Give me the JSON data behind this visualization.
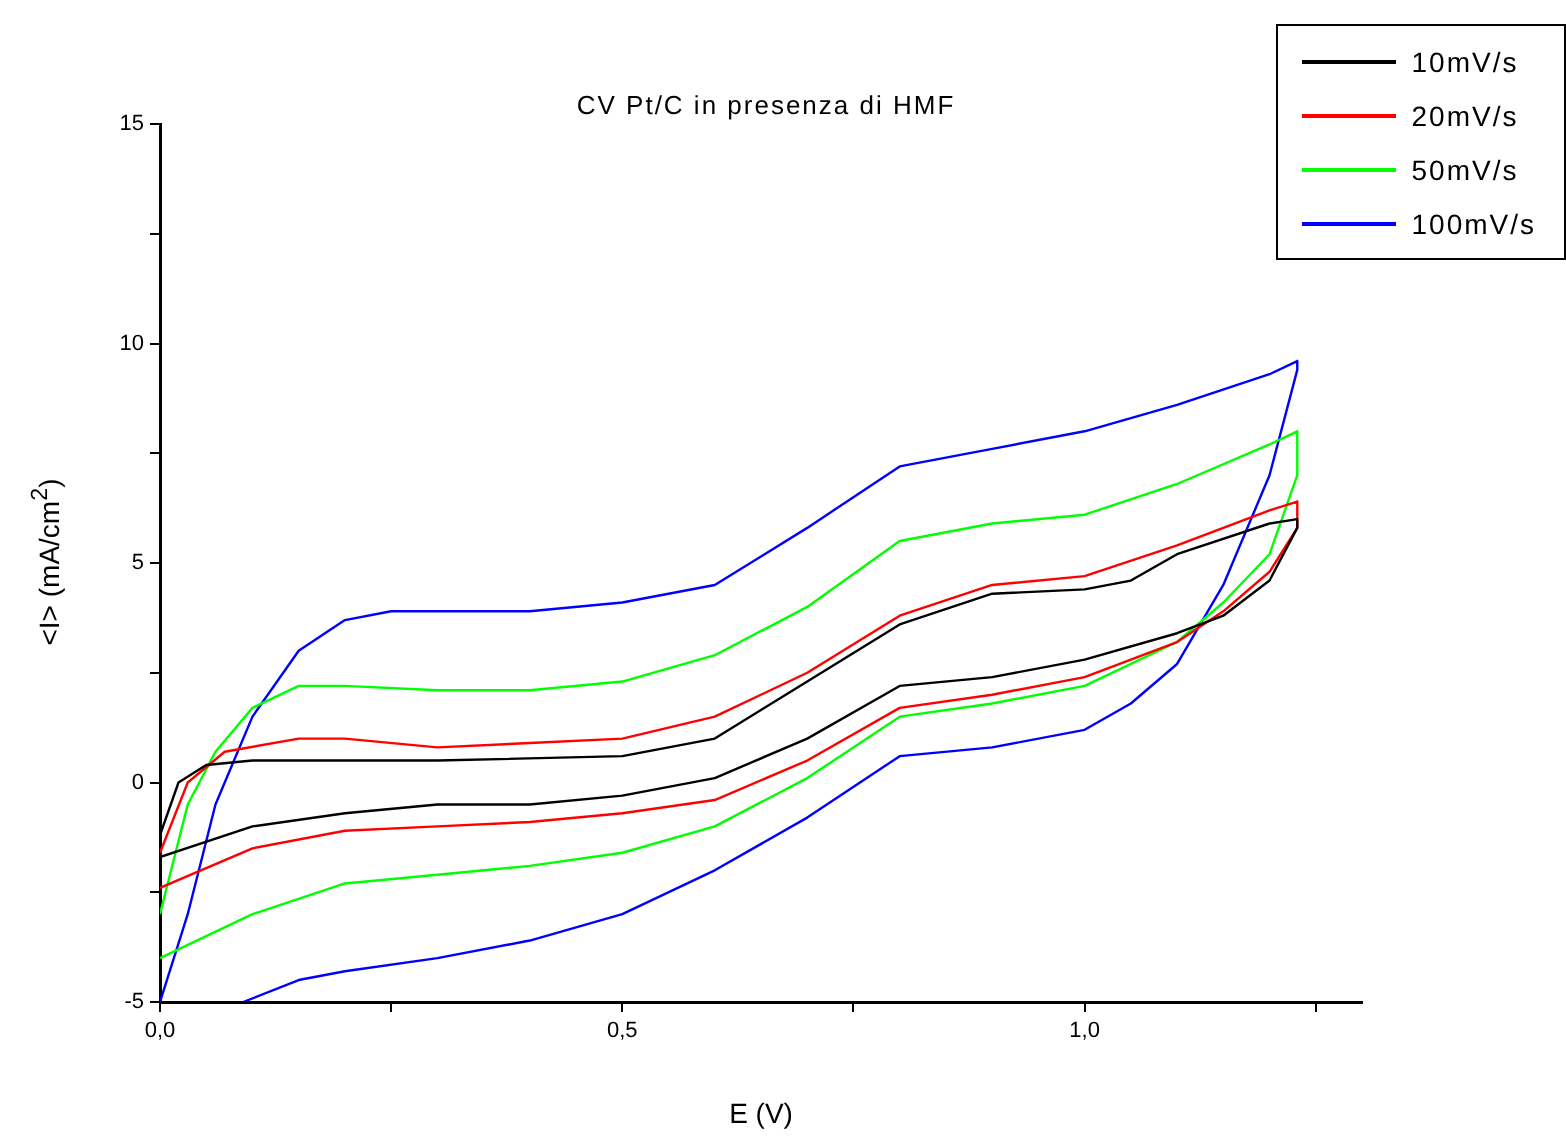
{
  "chart_data": {
    "type": "line",
    "title": "CV Pt/C in presenza di HMF",
    "xlabel": "E (V)",
    "ylabel": "<I> (mA/cm$^{2}$)",
    "xlim": [
      0,
      1.3
    ],
    "ylim": [
      -5,
      15
    ],
    "xticks": [
      {
        "value": 0,
        "label": "0,0"
      },
      {
        "value": 0.25,
        "label": null
      },
      {
        "value": 0.5,
        "label": "0,5"
      },
      {
        "value": 0.75,
        "label": null
      },
      {
        "value": 1,
        "label": "1,0"
      },
      {
        "value": 1.25,
        "label": null
      }
    ],
    "yticks": [
      -5,
      {
        "value": -2.5,
        "label": null
      },
      0,
      {
        "value": 2.5,
        "label": null
      },
      5,
      {
        "value": 7.5,
        "label": null
      },
      10,
      {
        "value": 12.5,
        "label": null
      },
      15
    ],
    "grid": false,
    "legend": "top right",
    "marker": "none",
    "line_style": "solid",
    "series": [
      {
        "name": "10mV/s",
        "color": "#000000",
        "x": [
          0,
          0.02,
          0.05,
          0.1,
          0.3,
          0.5,
          0.6,
          0.7,
          0.8,
          0.9,
          1.0,
          1.05,
          1.1,
          1.2,
          1.23,
          1.23,
          1.2,
          1.15,
          1.1,
          1.0,
          0.9,
          0.8,
          0.7,
          0.6,
          0.5,
          0.4,
          0.3,
          0.2,
          0.1,
          0
        ],
        "values": [
          -1.2,
          0,
          0.4,
          0.5,
          0.5,
          0.6,
          1.0,
          2.3,
          3.6,
          4.3,
          4.4,
          4.6,
          5.2,
          5.9,
          6.0,
          5.8,
          4.6,
          3.8,
          3.4,
          2.8,
          2.4,
          2.2,
          1.0,
          0.1,
          -0.3,
          -0.5,
          -0.5,
          -0.7,
          -1.0,
          -1.7
        ]
      },
      {
        "name": "20mV/s",
        "color": "#ff0000",
        "x": [
          0,
          0.03,
          0.07,
          0.15,
          0.2,
          0.3,
          0.4,
          0.5,
          0.6,
          0.7,
          0.8,
          0.9,
          1.0,
          1.1,
          1.2,
          1.23,
          1.23,
          1.2,
          1.15,
          1.1,
          1.0,
          0.9,
          0.8,
          0.7,
          0.6,
          0.5,
          0.4,
          0.3,
          0.2,
          0.1,
          0
        ],
        "values": [
          -1.6,
          0,
          0.7,
          1.0,
          1.0,
          0.8,
          0.9,
          1.0,
          1.5,
          2.5,
          3.8,
          4.5,
          4.7,
          5.4,
          6.2,
          6.4,
          5.8,
          4.8,
          3.9,
          3.2,
          2.4,
          2.0,
          1.7,
          0.5,
          -0.4,
          -0.7,
          -0.9,
          -1.0,
          -1.1,
          -1.5,
          -2.4
        ]
      },
      {
        "name": "50mV/s",
        "color": "#00ff00",
        "x": [
          0,
          0.03,
          0.06,
          0.1,
          0.15,
          0.2,
          0.3,
          0.4,
          0.5,
          0.6,
          0.7,
          0.8,
          0.9,
          1.0,
          1.1,
          1.2,
          1.23,
          1.23,
          1.2,
          1.15,
          1.1,
          1.0,
          0.9,
          0.8,
          0.7,
          0.6,
          0.5,
          0.4,
          0.3,
          0.2,
          0.1,
          0
        ],
        "values": [
          -3.0,
          -0.5,
          0.7,
          1.7,
          2.2,
          2.2,
          2.1,
          2.1,
          2.3,
          2.9,
          4.0,
          5.5,
          5.9,
          6.1,
          6.8,
          7.7,
          8.0,
          7.0,
          5.2,
          4.1,
          3.2,
          2.2,
          1.8,
          1.5,
          0.1,
          -1.0,
          -1.6,
          -1.9,
          -2.1,
          -2.3,
          -3.0,
          -4.0
        ]
      },
      {
        "name": "100mV/s",
        "color": "#0000ff",
        "x": [
          0,
          0.03,
          0.06,
          0.1,
          0.15,
          0.2,
          0.25,
          0.3,
          0.4,
          0.5,
          0.6,
          0.7,
          0.8,
          0.9,
          1.0,
          1.1,
          1.2,
          1.23,
          1.23,
          1.2,
          1.15,
          1.1,
          1.05,
          1.0,
          0.9,
          0.8,
          0.7,
          0.6,
          0.5,
          0.4,
          0.3,
          0.2,
          0.15,
          0.09
        ],
        "values": [
          -5,
          -3,
          -0.5,
          1.5,
          3.0,
          3.7,
          3.9,
          3.9,
          3.9,
          4.1,
          4.5,
          5.8,
          7.2,
          7.6,
          8.0,
          8.6,
          9.3,
          9.6,
          9.4,
          7.0,
          4.5,
          2.7,
          1.8,
          1.2,
          0.8,
          0.6,
          -0.8,
          -2.0,
          -3.0,
          -3.6,
          -4.0,
          -4.3,
          -4.5,
          -5.0
        ]
      }
    ]
  }
}
